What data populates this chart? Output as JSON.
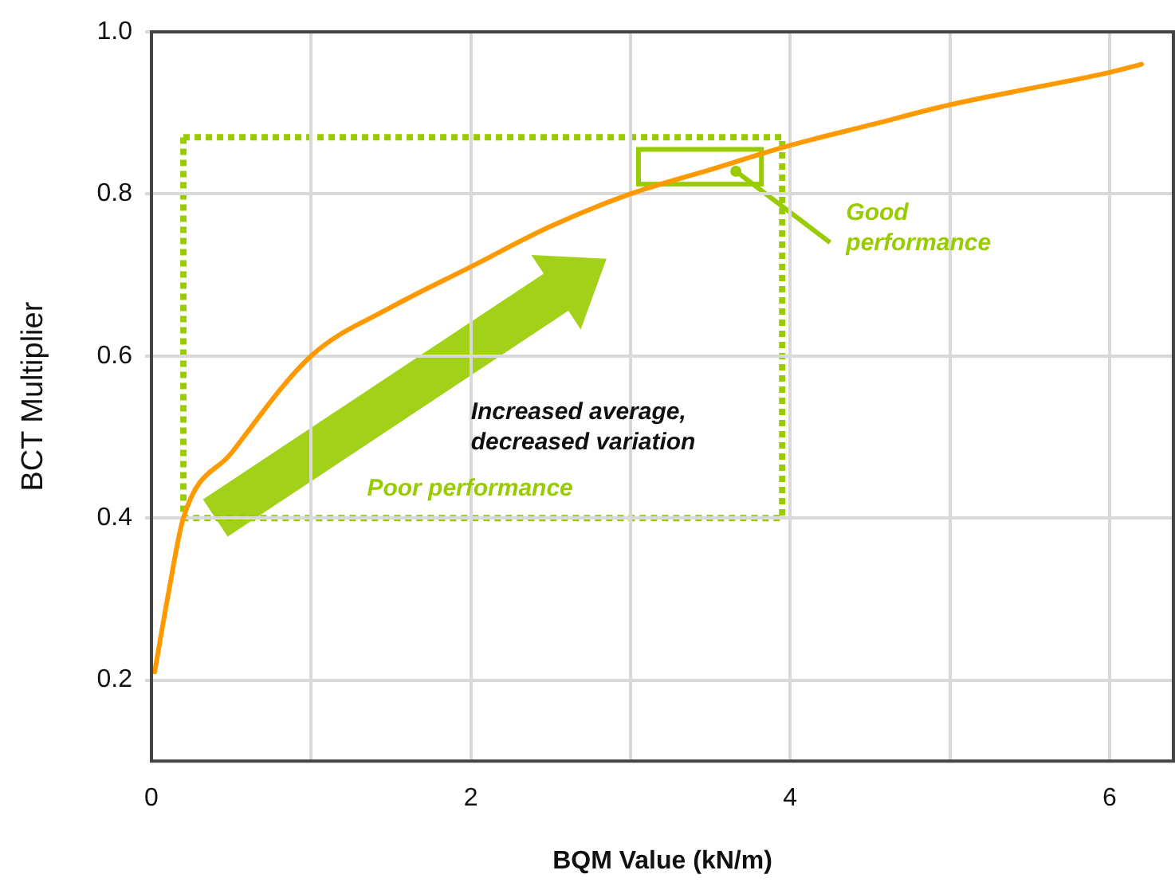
{
  "chart_data": {
    "type": "line",
    "xlabel": "BQM Value (kN/m)",
    "ylabel": "BCT Multiplier",
    "x": [
      0.02,
      0.1,
      0.2,
      0.5,
      1,
      1.5,
      2,
      2.5,
      3,
      3.5,
      4,
      4.5,
      5,
      5.5,
      6,
      6.2
    ],
    "series": [
      {
        "color": "#ff9900",
        "values": [
          0.21,
          0.3,
          0.4,
          0.48,
          0.6,
          0.66,
          0.71,
          0.76,
          0.8,
          0.83,
          0.86,
          0.885,
          0.91,
          0.93,
          0.95,
          0.96
        ]
      }
    ],
    "xlim": [
      0,
      6.4
    ],
    "ylim": [
      0.1,
      1.0
    ],
    "xticks": [
      0,
      {
        "value": 1,
        "label": null
      },
      2,
      {
        "value": 3,
        "label": null
      },
      4,
      {
        "value": 5,
        "label": null
      },
      6
    ],
    "yticks": [
      0.2,
      0.4,
      0.6,
      0.8,
      {
        "value": 1.0,
        "label": "1.0"
      }
    ],
    "grid": true,
    "legend": false,
    "marker": "none",
    "line_style": "solid",
    "annotations": [
      "Increased average, decreased variation",
      "Poor performance",
      "Good performance"
    ]
  }
}
